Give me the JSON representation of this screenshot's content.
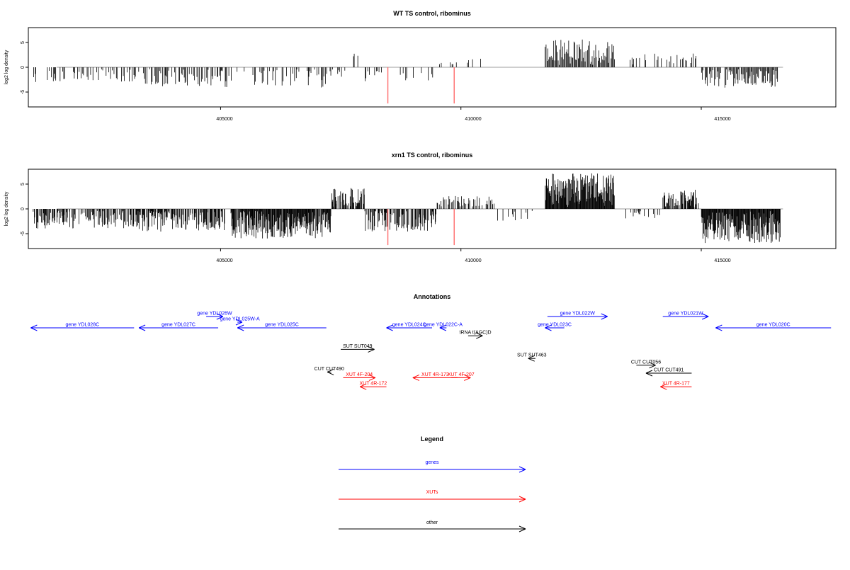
{
  "chart_data": [
    {
      "type": "bar",
      "title": "WT TS control, ribominus",
      "ylabel": "log2 log density",
      "xlabel": "",
      "xlim": [
        401000,
        417800
      ],
      "ylim": [
        -8,
        8
      ],
      "xticks": [
        405000,
        410000,
        415000
      ],
      "yticks": [
        -5,
        0,
        5
      ],
      "grid": false,
      "series_color": "#000000",
      "baseline_color": "#9e9e9e",
      "highlight_color": "#ff6b6b",
      "generator": "wt",
      "highlights": [
        {
          "x": 408480,
          "y": -7.3
        },
        {
          "x": 409860,
          "y": -7.3
        }
      ]
    },
    {
      "type": "bar",
      "title": "xrn1 TS control, ribominus",
      "ylabel": "log2 log density",
      "xlabel": "",
      "xlim": [
        401000,
        417800
      ],
      "ylim": [
        -8,
        8
      ],
      "xticks": [
        405000,
        410000,
        415000
      ],
      "yticks": [
        -5,
        0,
        5
      ],
      "grid": false,
      "series_color": "#000000",
      "baseline_color": "#9e9e9e",
      "highlight_color": "#ff6b6b",
      "generator": "xrn1",
      "highlights": [
        {
          "x": 408480,
          "y": -7.3
        },
        {
          "x": 409860,
          "y": -7.3
        }
      ]
    },
    {
      "type": "annotation-track",
      "title": "Annotations",
      "xlim": [
        401000,
        417800
      ],
      "colors": {
        "gene": "#0000ff",
        "xut": "#ff0000",
        "other": "#000000"
      },
      "features": [
        {
          "label": "gene YDL028C",
          "start": 401050,
          "end": 403200,
          "strand": "-",
          "cls": "gene",
          "row": 0
        },
        {
          "label": "gene YDL027C",
          "start": 403300,
          "end": 404950,
          "strand": "-",
          "cls": "gene",
          "row": 0
        },
        {
          "label": "gene YDL026W",
          "start": 404700,
          "end": 405050,
          "strand": "+",
          "cls": "gene",
          "row": -1
        },
        {
          "label": "gene YDL025W-A",
          "start": 405350,
          "end": 405450,
          "strand": "+",
          "cls": "gene",
          "row": -0.5
        },
        {
          "label": "gene YDL025C",
          "start": 405350,
          "end": 407200,
          "strand": "-",
          "cls": "gene",
          "row": 0
        },
        {
          "label": "gene YDL024C",
          "start": 408450,
          "end": 409400,
          "strand": "-",
          "cls": "gene",
          "row": 0
        },
        {
          "label": "gene YDL022C-A",
          "start": 409560,
          "end": 409700,
          "strand": "-",
          "cls": "gene",
          "row": 0
        },
        {
          "label": "tRNA t(AGC)D",
          "start": 410150,
          "end": 410450,
          "strand": "+",
          "cls": "other",
          "row": 0.7
        },
        {
          "label": "gene YDL022W",
          "start": 411800,
          "end": 413050,
          "strand": "+",
          "cls": "gene",
          "row": -1
        },
        {
          "label": "gene YDL023C",
          "start": 411750,
          "end": 412150,
          "strand": "-",
          "cls": "gene",
          "row": 0
        },
        {
          "label": "gene YDL021W",
          "start": 414200,
          "end": 415150,
          "strand": "+",
          "cls": "gene",
          "row": -1
        },
        {
          "label": "gene YDL020C",
          "start": 415300,
          "end": 417700,
          "strand": "-",
          "cls": "gene",
          "row": 0
        },
        {
          "label": "SUT SUT049",
          "start": 407500,
          "end": 408200,
          "strand": "+",
          "cls": "other",
          "row": 1.9
        },
        {
          "label": "SUT SUT463",
          "start": 411400,
          "end": 411550,
          "strand": "-",
          "cls": "other",
          "row": 2.7
        },
        {
          "label": "CUT CUT490",
          "start": 407220,
          "end": 407300,
          "strand": "-",
          "cls": "other",
          "row": 3.9
        },
        {
          "label": "XUT 4F-204",
          "start": 407550,
          "end": 408220,
          "strand": "+",
          "cls": "xut",
          "row": 4.4
        },
        {
          "label": "XUT 4R-172",
          "start": 407900,
          "end": 408450,
          "strand": "-",
          "cls": "xut",
          "row": 5.2
        },
        {
          "label": "XUT 4R-173",
          "start": 409000,
          "end": 409930,
          "strand": "-",
          "cls": "xut",
          "row": 4.4
        },
        {
          "label": "XUT 4F-207",
          "start": 409800,
          "end": 410200,
          "strand": "+",
          "cls": "xut",
          "row": 4.4
        },
        {
          "label": "CUT CUT056",
          "start": 413650,
          "end": 414050,
          "strand": "+",
          "cls": "other",
          "row": 3.3
        },
        {
          "label": "CUT CUT491",
          "start": 413850,
          "end": 414800,
          "strand": "-",
          "cls": "other",
          "row": 4.0
        },
        {
          "label": "XUT 4R-177",
          "start": 414150,
          "end": 414800,
          "strand": "-",
          "cls": "xut",
          "row": 5.2
        }
      ]
    },
    {
      "type": "legend",
      "title": "Legend",
      "items": [
        {
          "label": "genes",
          "color": "#0000ff"
        },
        {
          "label": "XUTs",
          "color": "#ff0000"
        },
        {
          "label": "other",
          "color": "#000000"
        }
      ]
    }
  ]
}
